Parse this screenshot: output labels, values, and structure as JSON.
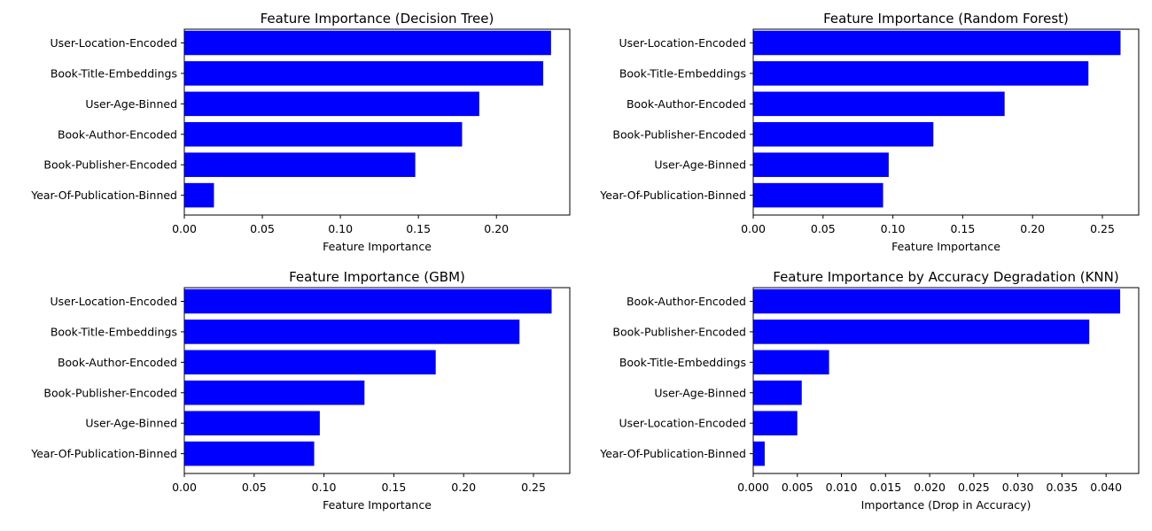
{
  "chart_data": [
    {
      "type": "bar",
      "orientation": "horizontal",
      "title": "Feature Importance (Decision Tree)",
      "xlabel": "Feature Importance",
      "ylabel": "",
      "color": "#0000ff",
      "xlim": [
        0,
        0.247
      ],
      "xticks": [
        "0.00",
        "0.05",
        "0.10",
        "0.15",
        "0.20"
      ],
      "xtick_values": [
        0,
        0.05,
        0.1,
        0.15,
        0.2
      ],
      "categories": [
        "User-Location-Encoded",
        "Book-Title-Embeddings",
        "User-Age-Binned",
        "Book-Author-Encoded",
        "Book-Publisher-Encoded",
        "Year-Of-Publication-Binned"
      ],
      "values": [
        0.235,
        0.23,
        0.189,
        0.178,
        0.148,
        0.019
      ]
    },
    {
      "type": "bar",
      "orientation": "horizontal",
      "title": "Feature Importance (Random Forest)",
      "xlabel": "Feature Importance",
      "ylabel": "",
      "color": "#0000ff",
      "xlim": [
        0,
        0.276
      ],
      "xticks": [
        "0.00",
        "0.05",
        "0.10",
        "0.15",
        "0.20",
        "0.25"
      ],
      "xtick_values": [
        0,
        0.05,
        0.1,
        0.15,
        0.2,
        0.25
      ],
      "categories": [
        "User-Location-Encoded",
        "Book-Title-Embeddings",
        "Book-Author-Encoded",
        "Book-Publisher-Encoded",
        "User-Age-Binned",
        "Year-Of-Publication-Binned"
      ],
      "values": [
        0.263,
        0.24,
        0.18,
        0.129,
        0.097,
        0.093
      ]
    },
    {
      "type": "bar",
      "orientation": "horizontal",
      "title": "Feature Importance (GBM)",
      "xlabel": "Feature Importance",
      "ylabel": "",
      "color": "#0000ff",
      "xlim": [
        0,
        0.276
      ],
      "xticks": [
        "0.00",
        "0.05",
        "0.10",
        "0.15",
        "0.20",
        "0.25"
      ],
      "xtick_values": [
        0,
        0.05,
        0.1,
        0.15,
        0.2,
        0.25
      ],
      "categories": [
        "User-Location-Encoded",
        "Book-Title-Embeddings",
        "Book-Author-Encoded",
        "Book-Publisher-Encoded",
        "User-Age-Binned",
        "Year-Of-Publication-Binned"
      ],
      "values": [
        0.263,
        0.24,
        0.18,
        0.129,
        0.097,
        0.093
      ]
    },
    {
      "type": "bar",
      "orientation": "horizontal",
      "title": "Feature Importance by Accuracy Degradation (KNN)",
      "xlabel": "Importance (Drop in Accuracy)",
      "ylabel": "",
      "color": "#0000ff",
      "xlim": [
        0,
        0.0437
      ],
      "xticks": [
        "0.000",
        "0.005",
        "0.010",
        "0.015",
        "0.020",
        "0.025",
        "0.030",
        "0.035",
        "0.040"
      ],
      "xtick_values": [
        0,
        0.005,
        0.01,
        0.015,
        0.02,
        0.025,
        0.03,
        0.035,
        0.04
      ],
      "categories": [
        "Book-Author-Encoded",
        "Book-Publisher-Encoded",
        "Book-Title-Embeddings",
        "User-Age-Binned",
        "User-Location-Encoded",
        "Year-Of-Publication-Binned"
      ],
      "values": [
        0.0416,
        0.0381,
        0.0086,
        0.0055,
        0.005,
        0.0013
      ]
    }
  ]
}
